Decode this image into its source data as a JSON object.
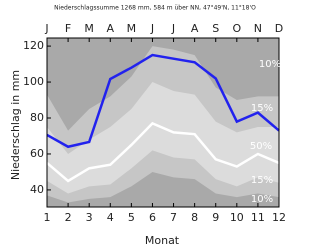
{
  "chart_data": {
    "type": "line",
    "title": "Niederschlagssumme 1268 mm, 584 m über NN, 47°49'N, 11°18'O",
    "x_label": "Monat",
    "y_label": "Niederschlag in mm",
    "x": [
      1,
      2,
      3,
      4,
      5,
      6,
      7,
      8,
      9,
      10,
      11,
      12
    ],
    "top_categories": [
      "J",
      "F",
      "M",
      "A",
      "M",
      "J",
      "J",
      "A",
      "S",
      "O",
      "N",
      "D"
    ],
    "xlim": [
      1,
      12
    ],
    "xticks": [
      1,
      2,
      3,
      4,
      5,
      6,
      7,
      8,
      9,
      10,
      11,
      12
    ],
    "ylim": [
      30.5,
      124.5
    ],
    "yticks": [
      40,
      60,
      80,
      100,
      120
    ],
    "background": "#a9a9a9",
    "bands": [
      {
        "color": "#c6c6c6",
        "upper": [
          93,
          73,
          85,
          92,
          103,
          120,
          118,
          115,
          97,
          90,
          92,
          92
        ],
        "lower": [
          37,
          33,
          35,
          36,
          42,
          50,
          47,
          46,
          38,
          36,
          38,
          36
        ]
      },
      {
        "color": "#dcdcdc",
        "upper": [
          75,
          60,
          68,
          75,
          85,
          100,
          95,
          93,
          78,
          72,
          75,
          75
        ],
        "lower": [
          45,
          38,
          42,
          43,
          52,
          62,
          58,
          57,
          46,
          42,
          47,
          44
        ]
      }
    ],
    "series": [
      {
        "color": "#ffffff",
        "values": [
          55,
          45,
          52,
          54,
          65,
          77,
          72,
          71,
          57,
          53,
          60,
          55
        ]
      },
      {
        "color": "#2222ee",
        "values": [
          70.6,
          64,
          66.7,
          101.7,
          108,
          115,
          113,
          111,
          102,
          78,
          83,
          73
        ]
      }
    ],
    "annotations": [
      "10%",
      "15%",
      "50%",
      "15%",
      "10%"
    ]
  }
}
